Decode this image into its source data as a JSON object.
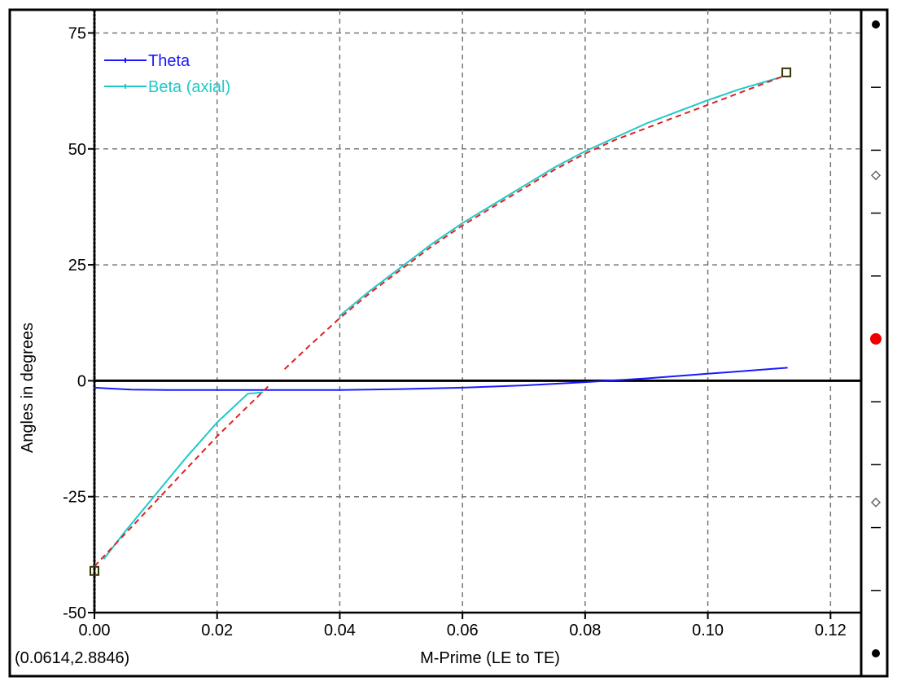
{
  "window": {
    "cursor_readout": "(0.0614,2.8846)"
  },
  "chart_data": {
    "type": "line",
    "xlabel": "M-Prime (LE to TE)",
    "ylabel": "Angles in degrees",
    "xlim": [
      0.0,
      0.125
    ],
    "ylim": [
      -50,
      80
    ],
    "x_ticks": [
      "0.00",
      "0.02",
      "0.04",
      "0.06",
      "0.08",
      "0.10",
      "0.12"
    ],
    "y_ticks": [
      "75",
      "50",
      "25",
      "0",
      "-25",
      "-50"
    ],
    "x_tick_values": [
      0.0,
      0.02,
      0.04,
      0.06,
      0.08,
      0.1,
      0.12
    ],
    "y_tick_values": [
      75,
      50,
      25,
      0,
      -25,
      -50
    ],
    "grid": true,
    "legend_position": "top-left",
    "series": [
      {
        "name": "Theta",
        "color": "#1a1aff",
        "style": "solid",
        "x": [
          0.0,
          0.006,
          0.012,
          0.02,
          0.03,
          0.04,
          0.05,
          0.06,
          0.07,
          0.08,
          0.09,
          0.1,
          0.113
        ],
        "y": [
          -1.5,
          -1.9,
          -2.0,
          -2.0,
          -2.0,
          -2.0,
          -1.8,
          -1.5,
          -1.0,
          -0.3,
          0.5,
          1.5,
          2.8
        ]
      },
      {
        "name": "Beta (axial)",
        "color": "#20c8c8",
        "style": "solid",
        "x": [
          0.0015,
          0.005,
          0.01,
          0.015,
          0.02,
          0.025,
          0.0275
        ],
        "y": [
          -38.5,
          -32.5,
          -24.5,
          -16.5,
          -9.0,
          -2.8,
          -2.5
        ]
      },
      {
        "name": "Beta (axial)",
        "color": "#20c8c8",
        "style": "solid",
        "x": [
          0.04,
          0.045,
          0.05,
          0.055,
          0.06,
          0.065,
          0.07,
          0.075,
          0.08,
          0.085,
          0.09,
          0.095,
          0.1,
          0.105,
          0.112
        ],
        "y": [
          14.0,
          19.5,
          24.5,
          29.5,
          34.0,
          38.0,
          42.0,
          46.0,
          49.5,
          52.5,
          55.5,
          58.0,
          60.5,
          62.8,
          65.5
        ]
      },
      {
        "name": "",
        "color": "#e02020",
        "style": "dashed",
        "x": [
          0.0,
          0.005,
          0.01,
          0.015,
          0.02,
          0.025,
          0.0285
        ],
        "y": [
          -40.0,
          -33.0,
          -26.0,
          -19.0,
          -12.0,
          -5.5,
          -1.0
        ]
      },
      {
        "name": "",
        "color": "#e02020",
        "style": "dashed",
        "x": [
          0.031,
          0.035,
          0.04,
          0.045,
          0.05,
          0.055,
          0.06,
          0.065,
          0.07,
          0.075,
          0.08,
          0.085,
          0.09,
          0.095,
          0.1,
          0.105,
          0.112
        ],
        "y": [
          2.5,
          7.5,
          13.5,
          19.0,
          24.0,
          29.0,
          33.5,
          37.5,
          41.5,
          45.5,
          49.0,
          52.0,
          54.5,
          57.0,
          59.5,
          62.0,
          65.5
        ]
      }
    ],
    "markers": [
      {
        "x": 0.0,
        "y": -41.0,
        "shape": "square"
      },
      {
        "x": 0.1128,
        "y": 66.5,
        "shape": "square"
      }
    ],
    "zero_lines": true
  },
  "side_scale": {
    "indicator_positions": [
      0.0,
      0.24,
      0.5,
      0.76,
      1.0
    ],
    "indicator_types": [
      "dot",
      "diamond",
      "red-dot",
      "diamond",
      "dot"
    ],
    "tick_positions": [
      0.1,
      0.2,
      0.3,
      0.4,
      0.6,
      0.7,
      0.8,
      0.9
    ]
  }
}
